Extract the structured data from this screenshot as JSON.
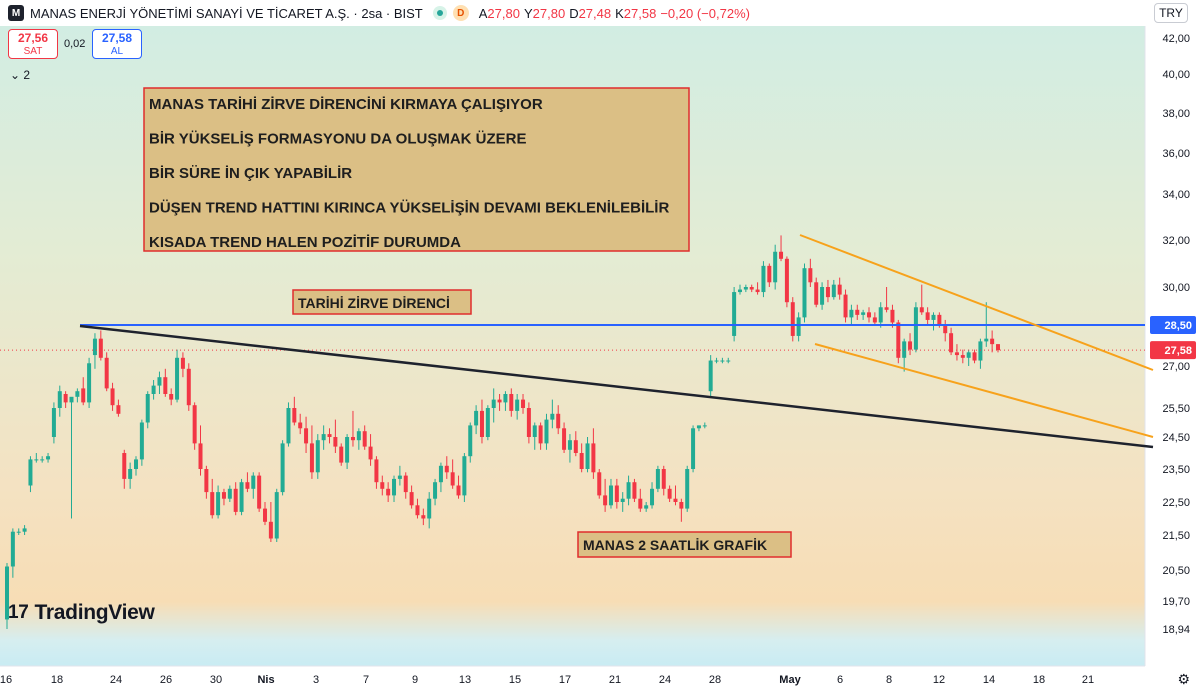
{
  "header": {
    "logo": "M",
    "title": "MANAS ENERJİ YÖNETİMİ SANAYİ VE TİCARET A.Ş. · 2sa · BIST",
    "badge": "D",
    "open_label": "A",
    "open": "27,80",
    "high_label": "Y",
    "high": "27,80",
    "low_label": "D",
    "low": "27,48",
    "close_label": "K",
    "close": "27,58",
    "change": "−0,20 (−0,72%)"
  },
  "trade": {
    "sell_price": "27,56",
    "sell_label": "SAT",
    "spread": "0,02",
    "buy_price": "27,58",
    "buy_label": "AL"
  },
  "indicators_toggle": "⌄ 2",
  "currency": "TRY",
  "branding": "TradingView",
  "colors": {
    "up": "#22ab94",
    "down": "#f23645",
    "resistance": "#2962ff",
    "channel": "#f7a21b",
    "trend": "#1e222d",
    "box_border": "#e02d2d",
    "box_fill": "#dbbf85"
  },
  "annotations": {
    "main_box": [
      "MANAS TARİHİ ZİRVE DİRENCİNİ KIRMAYA ÇALIŞIYOR",
      "BİR YÜKSELİŞ FORMASYONU DA OLUŞMAK ÜZERE",
      "BİR SÜRE İN ÇIK YAPABİLİR",
      "DÜŞEN TREND HATTINI KIRINCA YÜKSELİŞİN DEVAMI BEKLENİLEBİLİR",
      "KISADA TREND HALEN POZİTİF DURUMDA"
    ],
    "resistance_label": "TARİHİ ZİRVE DİRENCİ",
    "chart_label": "MANAS 2 SAATLİK GRAFİK"
  },
  "chart_data": {
    "type": "candlestick",
    "y_ticks": [
      "42,00",
      "40,00",
      "38,00",
      "36,00",
      "34,00",
      "32,00",
      "30,00",
      "27,00",
      "25,50",
      "24,50",
      "23,50",
      "22,50",
      "21,50",
      "20,50",
      "19,70",
      "18,94"
    ],
    "y_tick_values": [
      42,
      40,
      38,
      36,
      34,
      32,
      30,
      27,
      25.5,
      24.5,
      23.5,
      22.5,
      21.5,
      20.5,
      19.7,
      18.94
    ],
    "x_ticks": [
      "16",
      "18",
      "24",
      "26",
      "30",
      "Nis",
      "3",
      "7",
      "9",
      "13",
      "15",
      "17",
      "21",
      "24",
      "28",
      "May",
      "6",
      "8",
      "12",
      "14",
      "18",
      "21"
    ],
    "price_labels": [
      {
        "text": "28,50",
        "value": 28.5,
        "color": "#2962ff"
      },
      {
        "text": "27,58",
        "value": 27.58,
        "color": "#f23645"
      }
    ],
    "resistance_level": 28.5,
    "last_price": 27.58,
    "candles": [
      [
        19.2,
        20.7,
        18.9,
        20.6
      ],
      [
        20.6,
        21.7,
        20.3,
        21.6
      ],
      [
        21.6,
        21.7,
        21.5,
        21.6
      ],
      [
        21.6,
        21.8,
        21.5,
        21.7
      ],
      [
        23.0,
        23.9,
        22.8,
        23.8
      ],
      [
        23.8,
        24.0,
        23.7,
        23.8
      ],
      [
        23.8,
        23.9,
        23.7,
        23.8
      ],
      [
        23.8,
        24.0,
        23.7,
        23.9
      ],
      [
        24.5,
        25.7,
        24.3,
        25.5
      ],
      [
        25.5,
        26.3,
        25.2,
        26.1
      ],
      [
        26.0,
        26.1,
        25.5,
        25.7
      ],
      [
        25.7,
        25.8,
        22.0,
        25.9
      ],
      [
        25.9,
        26.2,
        25.7,
        26.1
      ],
      [
        26.2,
        26.6,
        25.6,
        25.7
      ],
      [
        25.7,
        27.3,
        25.5,
        27.1
      ],
      [
        27.4,
        28.2,
        26.9,
        28.0
      ],
      [
        28.0,
        28.3,
        27.2,
        27.3
      ],
      [
        27.3,
        27.5,
        26.1,
        26.2
      ],
      [
        26.2,
        26.4,
        25.4,
        25.6
      ],
      [
        25.6,
        25.8,
        25.2,
        25.3
      ],
      [
        24.0,
        24.1,
        22.9,
        23.2
      ],
      [
        23.2,
        23.7,
        22.9,
        23.5
      ],
      [
        23.5,
        23.9,
        23.3,
        23.8
      ],
      [
        23.8,
        25.1,
        23.6,
        25.0
      ],
      [
        25.0,
        26.1,
        24.8,
        26.0
      ],
      [
        26.0,
        26.5,
        25.8,
        26.3
      ],
      [
        26.3,
        26.8,
        26.0,
        26.6
      ],
      [
        26.6,
        26.9,
        25.9,
        26.0
      ],
      [
        26.0,
        26.2,
        25.6,
        25.8
      ],
      [
        25.8,
        27.6,
        25.7,
        27.3
      ],
      [
        27.3,
        27.5,
        26.6,
        26.9
      ],
      [
        26.9,
        27.1,
        25.4,
        25.6
      ],
      [
        25.6,
        25.7,
        24.1,
        24.3
      ],
      [
        24.3,
        24.9,
        23.3,
        23.5
      ],
      [
        23.5,
        23.6,
        22.6,
        22.8
      ],
      [
        22.8,
        23.2,
        22.0,
        22.1
      ],
      [
        22.1,
        23.0,
        22.0,
        22.8
      ],
      [
        22.8,
        22.9,
        22.4,
        22.6
      ],
      [
        22.6,
        23.0,
        22.5,
        22.9
      ],
      [
        22.9,
        23.1,
        22.1,
        22.2
      ],
      [
        22.2,
        23.2,
        22.1,
        23.1
      ],
      [
        23.1,
        23.4,
        22.8,
        22.9
      ],
      [
        22.9,
        23.4,
        22.6,
        23.3
      ],
      [
        23.3,
        23.4,
        22.2,
        22.3
      ],
      [
        22.3,
        22.5,
        21.8,
        21.9
      ],
      [
        21.9,
        22.5,
        21.3,
        21.4
      ],
      [
        21.4,
        22.9,
        21.3,
        22.8
      ],
      [
        22.8,
        24.4,
        22.7,
        24.3
      ],
      [
        24.3,
        25.7,
        24.2,
        25.5
      ],
      [
        25.5,
        25.9,
        24.9,
        25.0
      ],
      [
        25.0,
        25.3,
        24.6,
        24.8
      ],
      [
        24.8,
        25.2,
        24.0,
        24.3
      ],
      [
        24.3,
        24.9,
        23.2,
        23.4
      ],
      [
        23.4,
        24.6,
        23.2,
        24.4
      ],
      [
        24.4,
        24.9,
        24.1,
        24.6
      ],
      [
        24.6,
        24.8,
        24.3,
        24.5
      ],
      [
        24.5,
        25.1,
        24.0,
        24.2
      ],
      [
        24.2,
        24.3,
        23.6,
        23.7
      ],
      [
        23.7,
        24.6,
        23.5,
        24.5
      ],
      [
        24.5,
        25.4,
        24.2,
        24.4
      ],
      [
        24.4,
        24.8,
        24.1,
        24.7
      ],
      [
        24.7,
        24.9,
        24.1,
        24.2
      ],
      [
        24.2,
        24.6,
        23.6,
        23.8
      ],
      [
        23.8,
        23.9,
        22.9,
        23.1
      ],
      [
        23.1,
        23.3,
        22.7,
        22.9
      ],
      [
        22.9,
        23.1,
        22.5,
        22.7
      ],
      [
        22.7,
        23.3,
        22.5,
        23.2
      ],
      [
        23.2,
        23.6,
        23.0,
        23.3
      ],
      [
        23.3,
        23.4,
        22.6,
        22.8
      ],
      [
        22.8,
        23.0,
        22.3,
        22.4
      ],
      [
        22.4,
        22.6,
        22.0,
        22.1
      ],
      [
        22.1,
        22.3,
        21.8,
        22.0
      ],
      [
        22.0,
        22.8,
        21.7,
        22.6
      ],
      [
        22.6,
        23.2,
        22.4,
        23.1
      ],
      [
        23.1,
        23.7,
        22.8,
        23.6
      ],
      [
        23.6,
        23.9,
        23.2,
        23.4
      ],
      [
        23.4,
        23.8,
        22.9,
        23.0
      ],
      [
        23.0,
        23.3,
        22.6,
        22.7
      ],
      [
        22.7,
        24.0,
        22.5,
        23.9
      ],
      [
        23.9,
        25.0,
        23.7,
        24.9
      ],
      [
        24.9,
        25.6,
        24.6,
        25.4
      ],
      [
        25.4,
        25.8,
        24.3,
        24.5
      ],
      [
        24.5,
        25.6,
        24.4,
        25.5
      ],
      [
        25.5,
        26.2,
        25.0,
        25.8
      ],
      [
        25.8,
        26.0,
        25.4,
        25.7
      ],
      [
        25.7,
        26.1,
        25.4,
        26.0
      ],
      [
        26.0,
        26.2,
        25.2,
        25.4
      ],
      [
        25.4,
        26.0,
        25.1,
        25.8
      ],
      [
        25.8,
        26.0,
        25.3,
        25.5
      ],
      [
        25.5,
        25.7,
        24.3,
        24.5
      ],
      [
        24.5,
        25.0,
        24.1,
        24.9
      ],
      [
        24.9,
        25.0,
        24.1,
        24.3
      ],
      [
        24.3,
        25.3,
        24.1,
        25.1
      ],
      [
        25.1,
        25.8,
        24.8,
        25.3
      ],
      [
        25.3,
        25.6,
        24.6,
        24.8
      ],
      [
        24.8,
        25.0,
        24.0,
        24.1
      ],
      [
        24.1,
        24.6,
        23.7,
        24.4
      ],
      [
        24.4,
        24.7,
        23.9,
        24.0
      ],
      [
        24.0,
        24.3,
        23.4,
        23.5
      ],
      [
        23.5,
        24.5,
        23.4,
        24.3
      ],
      [
        24.3,
        24.8,
        23.2,
        23.4
      ],
      [
        23.4,
        23.5,
        22.6,
        22.7
      ],
      [
        22.7,
        23.2,
        22.2,
        22.4
      ],
      [
        22.4,
        23.2,
        22.3,
        23.0
      ],
      [
        23.0,
        23.2,
        22.3,
        22.5
      ],
      [
        22.5,
        22.8,
        22.2,
        22.6
      ],
      [
        22.6,
        23.3,
        22.4,
        23.1
      ],
      [
        23.1,
        23.2,
        22.5,
        22.6
      ],
      [
        22.6,
        22.9,
        22.2,
        22.3
      ],
      [
        22.3,
        22.5,
        22.2,
        22.4
      ],
      [
        22.4,
        23.1,
        22.3,
        22.9
      ],
      [
        22.9,
        23.6,
        22.8,
        23.5
      ],
      [
        23.5,
        23.6,
        22.7,
        22.9
      ],
      [
        22.9,
        23.0,
        22.5,
        22.6
      ],
      [
        22.6,
        23.0,
        22.4,
        22.5
      ],
      [
        22.5,
        22.6,
        21.9,
        22.3
      ],
      [
        22.3,
        23.6,
        22.2,
        23.5
      ],
      [
        23.5,
        24.9,
        23.4,
        24.8
      ],
      [
        24.8,
        24.9,
        24.7,
        24.9
      ],
      [
        24.9,
        25.0,
        24.8,
        24.9
      ],
      [
        26.1,
        27.4,
        25.9,
        27.2
      ],
      [
        27.2,
        27.3,
        27.1,
        27.2
      ],
      [
        27.2,
        27.3,
        27.1,
        27.2
      ],
      [
        27.2,
        27.3,
        27.1,
        27.2
      ],
      [
        28.1,
        30.0,
        27.9,
        29.8
      ],
      [
        29.8,
        30.1,
        29.7,
        29.9
      ],
      [
        29.9,
        30.1,
        29.8,
        30.0
      ],
      [
        30.0,
        30.1,
        29.8,
        29.9
      ],
      [
        29.9,
        30.2,
        29.7,
        29.8
      ],
      [
        29.8,
        31.1,
        29.6,
        30.9
      ],
      [
        30.9,
        31.0,
        30.0,
        30.2
      ],
      [
        30.2,
        31.8,
        29.9,
        31.5
      ],
      [
        31.5,
        32.2,
        31.1,
        31.2
      ],
      [
        31.2,
        31.3,
        29.2,
        29.4
      ],
      [
        29.4,
        29.6,
        27.9,
        28.1
      ],
      [
        28.1,
        29.0,
        27.9,
        28.8
      ],
      [
        28.8,
        31.0,
        28.6,
        30.8
      ],
      [
        30.8,
        31.2,
        30.0,
        30.2
      ],
      [
        30.2,
        30.4,
        29.2,
        29.3
      ],
      [
        29.3,
        30.2,
        29.1,
        30.0
      ],
      [
        30.0,
        30.3,
        29.4,
        29.6
      ],
      [
        29.6,
        30.3,
        29.5,
        30.1
      ],
      [
        30.1,
        30.4,
        29.5,
        29.7
      ],
      [
        29.7,
        29.9,
        28.6,
        28.8
      ],
      [
        28.8,
        29.3,
        28.5,
        29.1
      ],
      [
        29.1,
        29.3,
        28.7,
        28.9
      ],
      [
        28.9,
        29.1,
        28.7,
        29.0
      ],
      [
        29.0,
        29.2,
        28.6,
        28.8
      ],
      [
        28.8,
        29.0,
        28.5,
        28.6
      ],
      [
        28.6,
        29.4,
        28.4,
        29.2
      ],
      [
        29.2,
        30.0,
        29.0,
        29.1
      ],
      [
        29.1,
        29.3,
        28.4,
        28.6
      ],
      [
        28.6,
        28.7,
        27.1,
        27.3
      ],
      [
        27.3,
        28.0,
        26.8,
        27.9
      ],
      [
        27.9,
        28.2,
        27.4,
        27.6
      ],
      [
        27.6,
        29.4,
        27.5,
        29.2
      ],
      [
        29.2,
        30.1,
        28.9,
        29.0
      ],
      [
        29.0,
        29.2,
        28.5,
        28.7
      ],
      [
        28.7,
        29.0,
        28.3,
        28.9
      ],
      [
        28.9,
        29.0,
        28.4,
        28.5
      ],
      [
        28.5,
        28.7,
        27.9,
        28.2
      ],
      [
        28.2,
        28.4,
        27.4,
        27.5
      ],
      [
        27.5,
        27.8,
        27.2,
        27.4
      ],
      [
        27.4,
        27.6,
        27.1,
        27.3
      ],
      [
        27.3,
        27.6,
        27.0,
        27.5
      ],
      [
        27.5,
        27.6,
        27.1,
        27.2
      ],
      [
        27.2,
        28.0,
        26.9,
        27.9
      ],
      [
        27.9,
        29.4,
        27.7,
        28.0
      ],
      [
        28.0,
        28.3,
        27.5,
        27.8
      ],
      [
        27.8,
        27.8,
        27.5,
        27.58
      ]
    ]
  }
}
